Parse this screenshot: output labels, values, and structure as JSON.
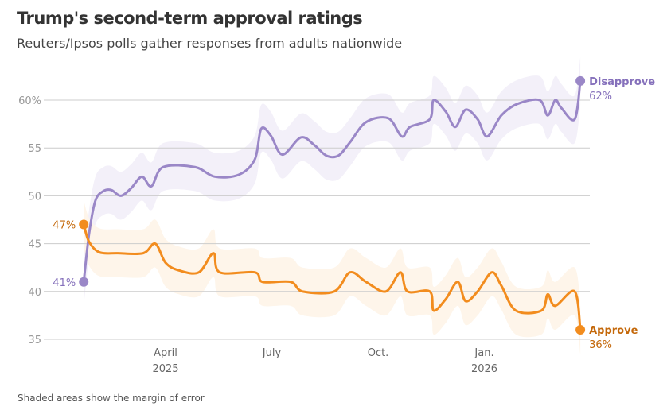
{
  "title": "Trump's second-term approval ratings",
  "subtitle": "Reuters/Ipsos polls gather responses from adults nationwide",
  "footnote": "Shaded areas show the margin of error",
  "chart_data": {
    "type": "line",
    "title": "Trump's second-term approval ratings",
    "xlabel": "",
    "ylabel": "",
    "x_unit": "months since Jan 1, 2025",
    "ylim": [
      35,
      60
    ],
    "xlim": [
      0.69,
      14.71
    ],
    "grid": true,
    "y_ticks": [
      {
        "value": 60,
        "label": "60%"
      },
      {
        "value": 55,
        "label": "55"
      },
      {
        "value": 50,
        "label": "50"
      },
      {
        "value": 45,
        "label": "45"
      },
      {
        "value": 40,
        "label": "40"
      },
      {
        "value": 35,
        "label": "35"
      }
    ],
    "x_ticks": [
      {
        "value": 3,
        "label": "April",
        "sub": "2025"
      },
      {
        "value": 6,
        "label": "July",
        "sub": ""
      },
      {
        "value": 9,
        "label": "Oct.",
        "sub": ""
      },
      {
        "value": 12,
        "label": "Jan.",
        "sub": "2026"
      }
    ],
    "margin_of_error": 2.5,
    "series": [
      {
        "name": "Disapprove",
        "color": "#9a87c7",
        "label_color": "#8570bb",
        "band_color": "#f3f0f9",
        "start_label": "41%",
        "end_label": "62%",
        "points": [
          [
            0.69,
            41
          ],
          [
            0.84,
            46
          ],
          [
            1.02,
            49.5
          ],
          [
            1.25,
            50.5
          ],
          [
            1.47,
            50.6
          ],
          [
            1.74,
            50
          ],
          [
            2.03,
            50.8
          ],
          [
            2.33,
            52
          ],
          [
            2.6,
            51
          ],
          [
            2.93,
            53
          ],
          [
            3.83,
            53
          ],
          [
            4.39,
            52
          ],
          [
            5.07,
            52.2
          ],
          [
            5.52,
            53.8
          ],
          [
            5.7,
            57
          ],
          [
            5.97,
            56.3
          ],
          [
            6.3,
            54.3
          ],
          [
            6.82,
            56.1
          ],
          [
            7.2,
            55.3
          ],
          [
            7.54,
            54.2
          ],
          [
            7.88,
            54.2
          ],
          [
            8.21,
            55.6
          ],
          [
            8.66,
            57.7
          ],
          [
            9.29,
            58.1
          ],
          [
            9.67,
            56.2
          ],
          [
            9.9,
            57.2
          ],
          [
            10.46,
            58
          ],
          [
            10.57,
            60
          ],
          [
            10.91,
            58.8
          ],
          [
            11.18,
            57.2
          ],
          [
            11.47,
            59
          ],
          [
            11.81,
            58
          ],
          [
            12.08,
            56.2
          ],
          [
            12.48,
            58.4
          ],
          [
            12.93,
            59.6
          ],
          [
            13.56,
            60
          ],
          [
            13.79,
            58.4
          ],
          [
            14.0,
            60
          ],
          [
            14.17,
            59.2
          ],
          [
            14.55,
            58
          ],
          [
            14.71,
            62
          ]
        ]
      },
      {
        "name": "Approve",
        "color": "#f28c1e",
        "label_color": "#c4680a",
        "band_color": "#fef5ea",
        "start_label": "47%",
        "end_label": "36%",
        "points": [
          [
            0.69,
            47
          ],
          [
            0.84,
            45.2
          ],
          [
            1.13,
            44.1
          ],
          [
            1.65,
            44
          ],
          [
            2.37,
            44
          ],
          [
            2.71,
            45
          ],
          [
            3,
            43
          ],
          [
            3.38,
            42.2
          ],
          [
            3.94,
            42
          ],
          [
            4.35,
            44
          ],
          [
            4.53,
            42
          ],
          [
            5.52,
            42
          ],
          [
            5.74,
            41
          ],
          [
            6.53,
            41
          ],
          [
            6.87,
            40
          ],
          [
            7.76,
            40
          ],
          [
            8.21,
            42
          ],
          [
            8.66,
            41
          ],
          [
            9.22,
            40
          ],
          [
            9.63,
            42
          ],
          [
            9.83,
            40
          ],
          [
            10.46,
            40
          ],
          [
            10.57,
            38
          ],
          [
            10.91,
            39.2
          ],
          [
            11.25,
            41
          ],
          [
            11.47,
            39
          ],
          [
            11.81,
            40
          ],
          [
            12.21,
            42
          ],
          [
            12.48,
            40.6
          ],
          [
            12.89,
            38
          ],
          [
            13.61,
            38
          ],
          [
            13.79,
            39.7
          ],
          [
            14.0,
            38.5
          ],
          [
            14.55,
            40
          ],
          [
            14.71,
            36
          ]
        ]
      }
    ]
  }
}
